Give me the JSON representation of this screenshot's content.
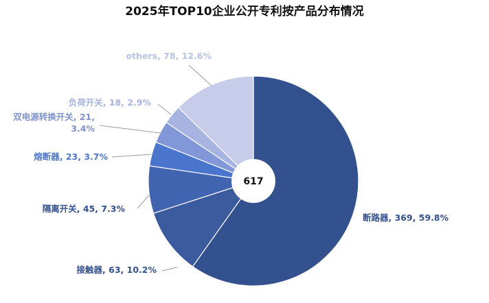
{
  "chart_data": {
    "type": "pie",
    "title": "2025年TOP10企业公开专利按产品分布情况",
    "center_label": "617",
    "slices": [
      {
        "name": "断路器",
        "value": 369,
        "percent": "59.8%",
        "color": "#34518f",
        "label": "断路器, 369, 59.8%"
      },
      {
        "name": "接触器",
        "value": 63,
        "percent": "10.2%",
        "color": "#3b5b9e",
        "label": "接触器, 63, 10.2%"
      },
      {
        "name": "隔离开关",
        "value": 45,
        "percent": "7.3%",
        "color": "#4164b1",
        "label": "隔离开关, 45, 7.3%"
      },
      {
        "name": "熔断器",
        "value": 23,
        "percent": "3.7%",
        "color": "#4a75cc",
        "label": "熔断器, 23, 3.7%"
      },
      {
        "name": "双电源转换开关",
        "value": 21,
        "percent": "3.4%",
        "color": "#8197d8",
        "label_lines": [
          "双电源转换开关, 21,",
          "3.4%"
        ]
      },
      {
        "name": "负荷开关",
        "value": 18,
        "percent": "2.9%",
        "color": "#a7b4e1",
        "label": "负荷开关, 18, 2.9%"
      },
      {
        "name": "others",
        "value": 78,
        "percent": "12.6%",
        "color": "#c6cce9",
        "label": "others, 78, 12.6%"
      }
    ]
  }
}
